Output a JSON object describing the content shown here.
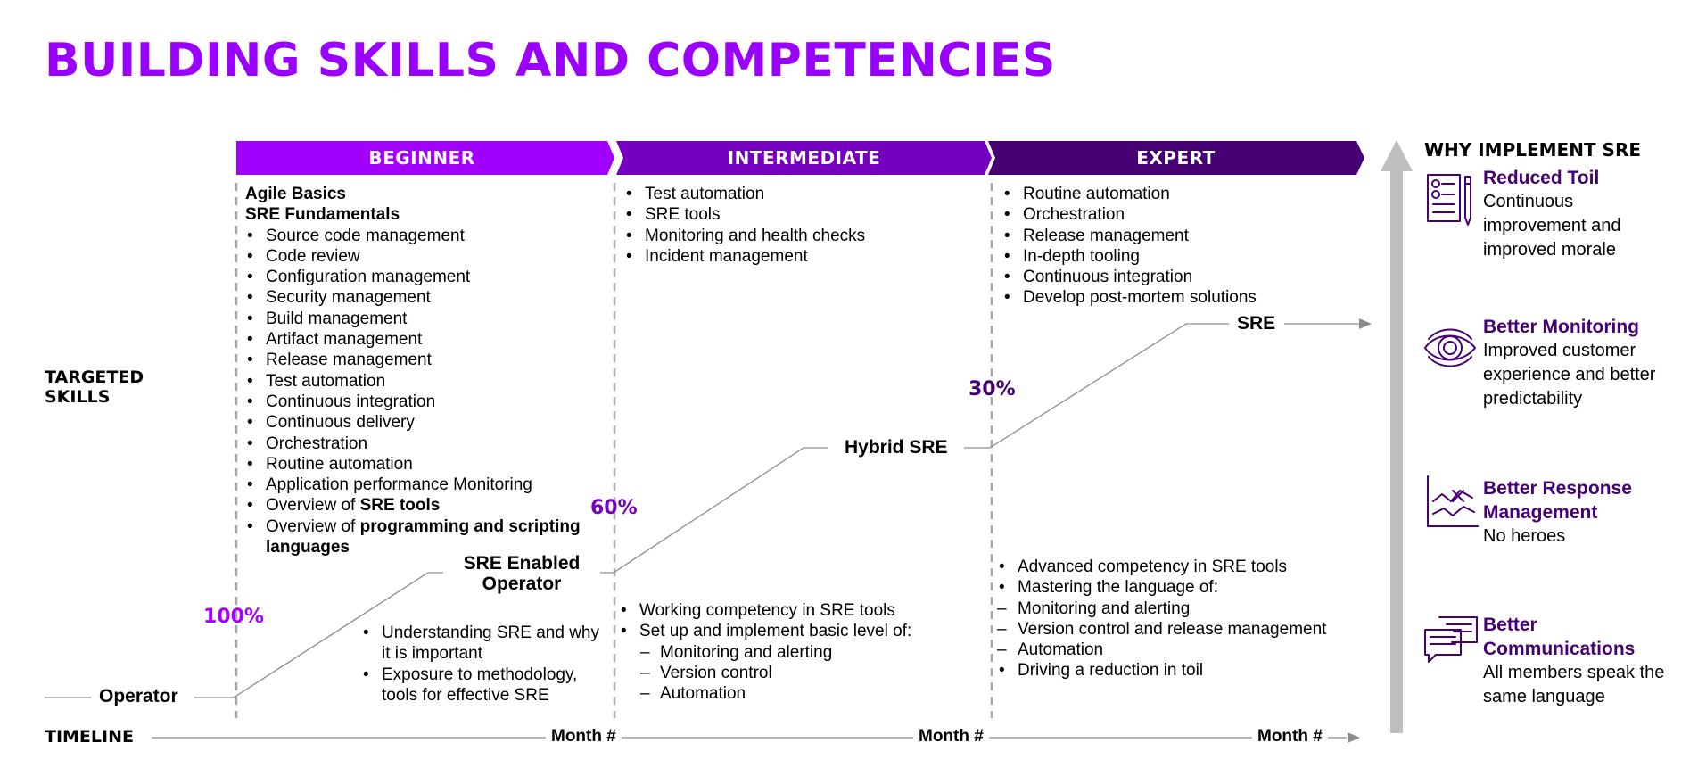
{
  "title": "BUILDING SKILLS AND COMPETENCIES",
  "colors": {
    "title": "#9900FF",
    "beginner": "#A100FF",
    "intermediate": "#7500C0",
    "expert": "#460073",
    "pct_beginner": "#A100FF",
    "pct_intermediate": "#7500C0",
    "pct_expert": "#460073",
    "benefit_title": "#460073",
    "arrow": "#BFBFBF"
  },
  "phases": [
    {
      "label": "BEGINNER"
    },
    {
      "label": "INTERMEDIATE"
    },
    {
      "label": "EXPERT"
    }
  ],
  "left_labels": {
    "targeted_skills": "TARGETED\nSKILLS",
    "timeline": "TIMELINE"
  },
  "beginner_skills": {
    "headings": [
      "Agile Basics",
      "SRE Fundamentals"
    ],
    "items": [
      "Source code management",
      "Code review",
      "Configuration management",
      "Security management",
      "Build management",
      "Artifact management",
      "Release management",
      "Test automation",
      "Continuous integration",
      "Continuous delivery",
      "Orchestration",
      "Routine automation",
      "Application performance Monitoring"
    ],
    "overview_tools_prefix": "Overview of ",
    "overview_tools_bold": "SRE tools",
    "overview_langs_prefix": "Overview of ",
    "overview_langs_bold": "programming and scripting languages"
  },
  "intermediate_skills": [
    "Test automation",
    "SRE tools",
    "Monitoring and health checks",
    "Incident management"
  ],
  "expert_skills": [
    "Routine automation",
    "Orchestration",
    "Release management",
    "In-depth tooling",
    "Continuous integration",
    "Develop post-mortem solutions"
  ],
  "stages": {
    "operator": "Operator",
    "sre_enabled_operator": "SRE Enabled\nOperator",
    "hybrid_sre": "Hybrid SRE",
    "sre": "SRE"
  },
  "percentages": {
    "beginner": "100%",
    "intermediate": "60%",
    "expert": "30%"
  },
  "beginner_competencies": [
    "Understanding SRE and why it is important",
    "Exposure to methodology, tools for effective SRE"
  ],
  "intermediate_competencies": {
    "items": [
      "Working competency in SRE tools",
      "Set up and implement basic level of:"
    ],
    "sub_items": [
      "Monitoring and alerting",
      "Version control",
      "Automation"
    ]
  },
  "expert_competencies": [
    {
      "type": "bullet",
      "text": "Advanced competency in SRE tools"
    },
    {
      "type": "bullet",
      "text": "Mastering the language of:"
    },
    {
      "type": "dash",
      "text": "Monitoring and alerting"
    },
    {
      "type": "dash",
      "text": "Version control and release management"
    },
    {
      "type": "dash",
      "text": "Automation"
    },
    {
      "type": "bullet",
      "text": "Driving a reduction in toil"
    }
  ],
  "timeline_months": [
    "Month #",
    "Month #",
    "Month #"
  ],
  "why": {
    "title": "WHY IMPLEMENT SRE",
    "benefits": [
      {
        "icon": "checklist-icon",
        "title": "Reduced Toil",
        "desc": "Continuous improvement and improved morale"
      },
      {
        "icon": "eye-icon",
        "title": "Better Monitoring",
        "desc": "Improved customer experience and better predictability"
      },
      {
        "icon": "trend-chart-icon",
        "title": "Better Response Management",
        "desc": "No heroes"
      },
      {
        "icon": "chat-icon",
        "title": "Better Communications",
        "desc": "All members speak the same language"
      }
    ]
  }
}
